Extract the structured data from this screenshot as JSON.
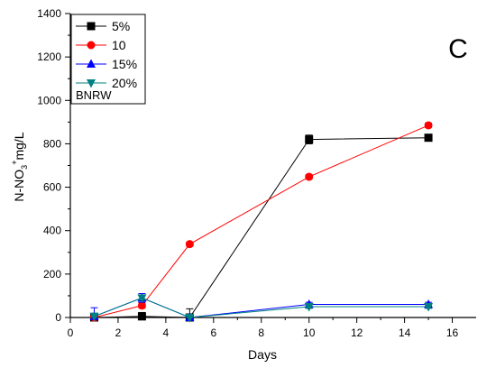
{
  "chart_data": {
    "type": "line",
    "panel_label": "C",
    "xlabel": "Days",
    "ylabel_parts": [
      "N-NO",
      "3",
      "+",
      "mg/L"
    ],
    "xlim": [
      0,
      17
    ],
    "ylim": [
      0,
      1400
    ],
    "xticks": [
      0,
      2,
      4,
      6,
      8,
      10,
      12,
      14,
      16
    ],
    "yticks": [
      0,
      200,
      400,
      600,
      800,
      1000,
      1200,
      1400
    ],
    "legend_position": "top-left",
    "legend_note": "BNRW",
    "grid": false,
    "series": [
      {
        "name": "5%",
        "color": "#000000",
        "marker": "square",
        "x": [
          1,
          3,
          5,
          10,
          15
        ],
        "y": [
          0,
          5,
          0,
          820,
          828
        ],
        "err": [
          12,
          18,
          40,
          20,
          8
        ]
      },
      {
        "name": "10",
        "color": "#ff0000",
        "marker": "circle",
        "x": [
          1,
          3,
          5,
          10,
          15
        ],
        "y": [
          0,
          55,
          338,
          648,
          885
        ],
        "err": [
          8,
          12,
          10,
          10,
          10
        ]
      },
      {
        "name": "15%",
        "color": "#0000ff",
        "marker": "triangle-up",
        "x": [
          1,
          3,
          5,
          10,
          15
        ],
        "y": [
          5,
          90,
          0,
          60,
          60
        ],
        "err": [
          40,
          20,
          10,
          10,
          10
        ]
      },
      {
        "name": "20%",
        "color": "#008080",
        "marker": "triangle-down",
        "x": [
          1,
          3,
          5,
          10,
          15
        ],
        "y": [
          5,
          90,
          0,
          50,
          50
        ],
        "err": [
          15,
          10,
          8,
          8,
          8
        ]
      }
    ]
  }
}
